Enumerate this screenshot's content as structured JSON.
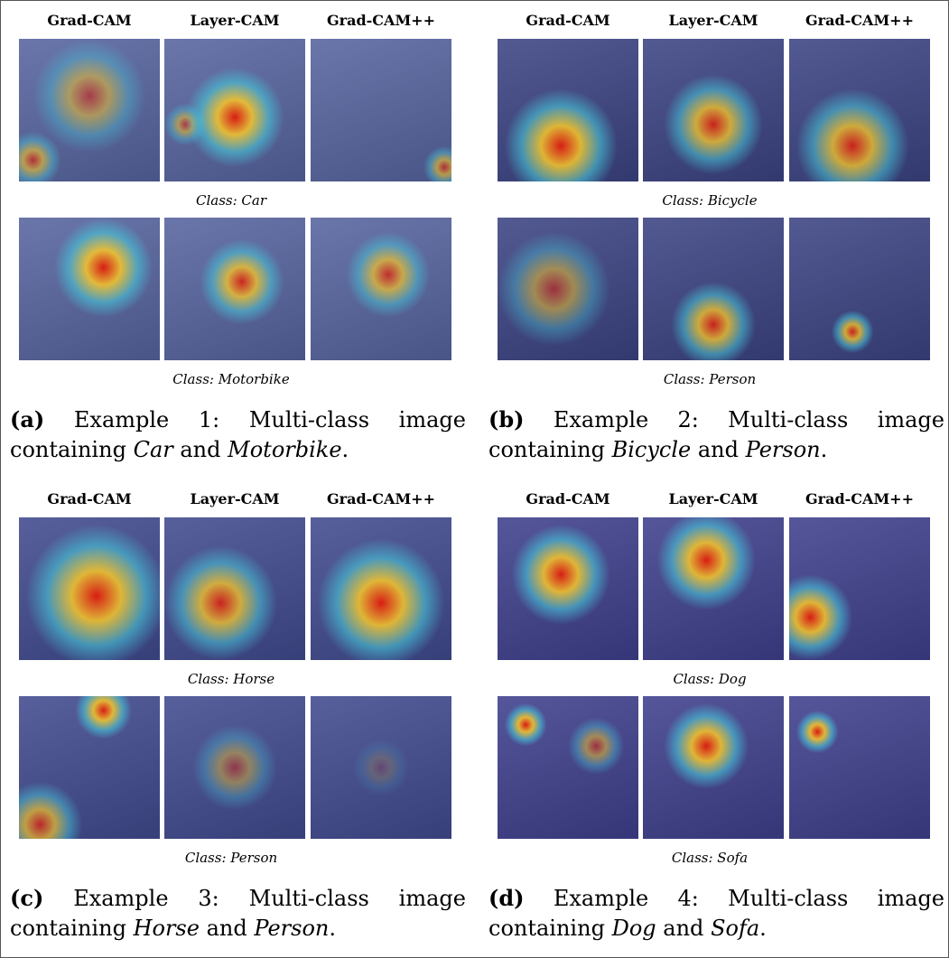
{
  "panels": [
    {
      "label": "(a)",
      "columns": [
        "Grad-CAM",
        "Layer-CAM",
        "Grad-CAM++"
      ],
      "rows": [
        "Class: Car",
        "Class: Motorbike"
      ],
      "caption": {
        "prefix": "Example 1: Multi-class image containing",
        "term1": "Car",
        "joiner": "and",
        "term2": "Motorbike",
        "end": "."
      }
    },
    {
      "label": "(b)",
      "columns": [
        "Grad-CAM",
        "Layer-CAM",
        "Grad-CAM++"
      ],
      "rows": [
        "Class: Bicycle",
        "Class: Person"
      ],
      "caption": {
        "prefix": "Example 2: Multi-class image containing",
        "term1": "Bicycle",
        "joiner": "and",
        "term2": "Person",
        "end": "."
      }
    },
    {
      "label": "(c)",
      "columns": [
        "Grad-CAM",
        "Layer-CAM",
        "Grad-CAM++"
      ],
      "rows": [
        "Class: Horse",
        "Class: Person"
      ],
      "caption": {
        "prefix": "Example 3: Multi-class image containing",
        "term1": "Horse",
        "joiner": "and",
        "term2": "Person",
        "end": "."
      }
    },
    {
      "label": "(d)",
      "columns": [
        "Grad-CAM",
        "Layer-CAM",
        "Grad-CAM++"
      ],
      "rows": [
        "Class: Dog",
        "Class: Sofa"
      ],
      "caption": {
        "prefix": "Example 4: Multi-class image containing",
        "term1": "Dog",
        "joiner": "and",
        "term2": "Sofa",
        "end": "."
      }
    }
  ]
}
